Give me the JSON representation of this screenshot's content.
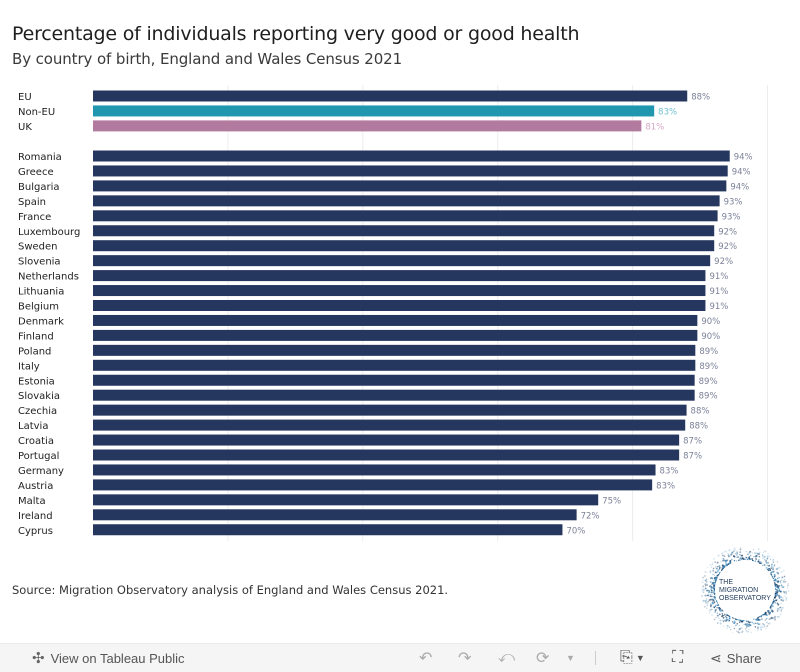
{
  "header": {
    "title": "Percentage of individuals reporting very good or good health",
    "subtitle": "By country of birth, England and Wales Census 2021"
  },
  "chart_data": {
    "type": "bar",
    "orientation": "horizontal",
    "title": "Percentage of individuals reporting very good or good health",
    "subtitle": "By country of birth, England and Wales Census 2021",
    "xlabel": "",
    "ylabel": "",
    "xlim": [
      0,
      100
    ],
    "gridlines_x": [
      20,
      40,
      60,
      80,
      100
    ],
    "grid": true,
    "value_format": "percent",
    "colors": {
      "default": "#26375f",
      "Non-EU": "#2096af",
      "UK": "#b37a9f"
    },
    "label_colors": {
      "default": "#7c8198",
      "Non-EU": "#70c1d1",
      "UK": "#d6a8c6"
    },
    "groups": [
      {
        "name": "summary",
        "categories": [
          "EU",
          "Non-EU",
          "UK"
        ],
        "values": [
          88.1,
          83.2,
          81.3
        ],
        "labels": [
          "88%",
          "83%",
          "81%"
        ]
      },
      {
        "name": "countries",
        "categories": [
          "Romania",
          "Greece",
          "Bulgaria",
          "Spain",
          "France",
          "Luxembourg",
          "Sweden",
          "Slovenia",
          "Netherlands",
          "Lithuania",
          "Belgium",
          "Denmark",
          "Finland",
          "Poland",
          "Italy",
          "Estonia",
          "Slovakia",
          "Czechia",
          "Latvia",
          "Croatia",
          "Portugal",
          "Germany",
          "Austria",
          "Malta",
          "Ireland",
          "Cyprus"
        ],
        "values": [
          94.4,
          94.1,
          93.9,
          92.9,
          92.6,
          92.1,
          92.1,
          91.5,
          90.8,
          90.8,
          90.8,
          89.6,
          89.6,
          89.3,
          89.3,
          89.2,
          89.2,
          88.0,
          87.8,
          86.9,
          86.9,
          83.4,
          82.9,
          74.9,
          71.7,
          69.6
        ],
        "labels": [
          "94%",
          "94%",
          "94%",
          "93%",
          "93%",
          "92%",
          "92%",
          "92%",
          "91%",
          "91%",
          "91%",
          "90%",
          "90%",
          "89%",
          "89%",
          "89%",
          "89%",
          "88%",
          "88%",
          "87%",
          "87%",
          "83%",
          "83%",
          "75%",
          "72%",
          "70%"
        ]
      }
    ]
  },
  "source": "Source: Migration Observatory analysis of England and Wales Census 2021.",
  "logo": {
    "line1": "THE",
    "line2": "MIGRATION",
    "line3": "OBSERVATORY"
  },
  "footer": {
    "view_label": "View on Tableau Public",
    "share_label": "Share",
    "icons": [
      "tableau-icon",
      "undo-icon",
      "redo-icon",
      "revert-icon",
      "refresh-icon",
      "pause-dropdown-icon",
      "download-icon",
      "fullscreen-icon",
      "share-icon"
    ]
  }
}
